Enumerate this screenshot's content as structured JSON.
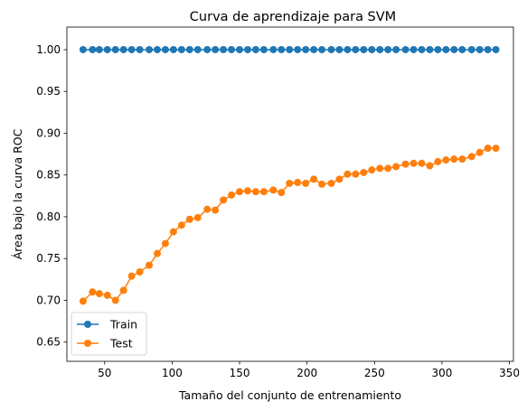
{
  "chart_data": {
    "type": "line",
    "title": "Curva de aprendizaje para SVM",
    "xlabel": "Tamaño del conjunto de entrenamiento",
    "ylabel": "Área bajo la curva ROC",
    "xlim": [
      22,
      353
    ],
    "ylim": [
      0.627,
      1.027
    ],
    "xticks": [
      50,
      100,
      150,
      200,
      250,
      300,
      350
    ],
    "yticks": [
      0.65,
      0.7,
      0.75,
      0.8,
      0.85,
      0.9,
      0.95,
      1.0
    ],
    "legend_position": "lower-left",
    "grid": false,
    "x": [
      34,
      41,
      46,
      52,
      58,
      64,
      70,
      76,
      83,
      89,
      95,
      101,
      107,
      113,
      119,
      126,
      132,
      138,
      144,
      150,
      156,
      162,
      168,
      175,
      181,
      187,
      193,
      199,
      205,
      211,
      218,
      224,
      230,
      236,
      242,
      248,
      254,
      260,
      266,
      273,
      279,
      285,
      291,
      297,
      303,
      309,
      315,
      322,
      328,
      334,
      340
    ],
    "series": [
      {
        "name": "Train",
        "color": "#1f77b4",
        "values": [
          1.0,
          1.0,
          1.0,
          1.0,
          1.0,
          1.0,
          1.0,
          1.0,
          1.0,
          1.0,
          1.0,
          1.0,
          1.0,
          1.0,
          1.0,
          1.0,
          1.0,
          1.0,
          1.0,
          1.0,
          1.0,
          1.0,
          1.0,
          1.0,
          1.0,
          1.0,
          1.0,
          1.0,
          1.0,
          1.0,
          1.0,
          1.0,
          1.0,
          1.0,
          1.0,
          1.0,
          1.0,
          1.0,
          1.0,
          1.0,
          1.0,
          1.0,
          1.0,
          1.0,
          1.0,
          1.0,
          1.0,
          1.0,
          1.0,
          1.0,
          1.0
        ]
      },
      {
        "name": "Test",
        "color": "#ff7f0e",
        "values": [
          0.699,
          0.71,
          0.708,
          0.706,
          0.7,
          0.712,
          0.729,
          0.734,
          0.742,
          0.756,
          0.768,
          0.782,
          0.79,
          0.797,
          0.799,
          0.809,
          0.808,
          0.82,
          0.826,
          0.83,
          0.831,
          0.83,
          0.83,
          0.832,
          0.829,
          0.84,
          0.841,
          0.84,
          0.845,
          0.839,
          0.84,
          0.845,
          0.851,
          0.851,
          0.853,
          0.856,
          0.858,
          0.858,
          0.86,
          0.863,
          0.864,
          0.864,
          0.861,
          0.866,
          0.868,
          0.869,
          0.869,
          0.872,
          0.877,
          0.882,
          0.882
        ]
      }
    ]
  }
}
